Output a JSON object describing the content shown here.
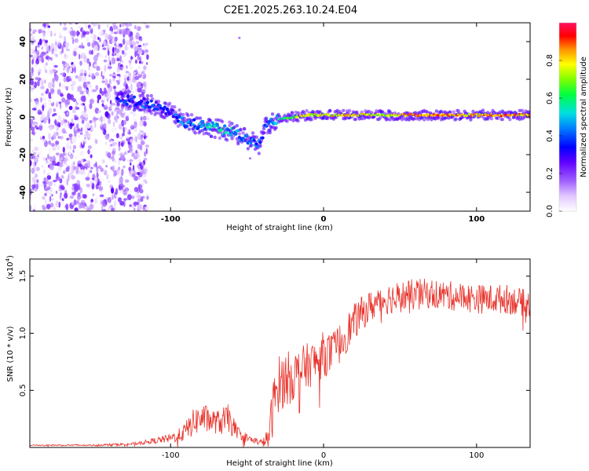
{
  "figure_title": "C2E1.2025.263.10.24.E04",
  "chart_data": [
    {
      "type": "heatmap",
      "panel": "spectrogram",
      "xlabel": "Height of straight line (km)",
      "ylabel": "Frequency (Hz)",
      "xlim": [
        -192,
        135
      ],
      "ylim": [
        -50,
        50
      ],
      "x_ticks": [
        -100,
        0,
        100
      ],
      "x_tick_labels": [
        "-100",
        "0",
        "100"
      ],
      "y_ticks": [
        -40,
        -20,
        0,
        20,
        40
      ],
      "y_tick_labels": [
        "-40",
        "-20",
        "0",
        "20",
        "40"
      ],
      "colorbar": {
        "label": "Normalized spectral amplitude",
        "range": [
          0.0,
          1.0
        ],
        "ticks": [
          0.0,
          0.2,
          0.4,
          0.6,
          0.8
        ],
        "tick_labels": [
          "0.0",
          "0.2",
          "0.4",
          "0.6",
          "0.8"
        ]
      },
      "ridge": {
        "x": [
          -135,
          -120,
          -110,
          -100,
          -90,
          -80,
          -70,
          -60,
          -50,
          -42,
          -38,
          -30,
          -20,
          -10,
          0,
          20,
          40,
          60,
          80,
          100,
          120,
          135
        ],
        "freq": [
          10,
          8,
          6,
          2,
          -3,
          -4,
          -6,
          -8,
          -12,
          -15,
          -5,
          -1,
          0,
          1,
          1,
          1,
          1,
          1,
          1,
          1,
          1,
          1
        ],
        "amplitude": [
          0.3,
          0.35,
          0.35,
          0.35,
          0.4,
          0.45,
          0.5,
          0.5,
          0.45,
          0.4,
          0.3,
          0.5,
          0.7,
          0.75,
          0.75,
          0.8,
          0.7,
          0.85,
          0.85,
          0.8,
          0.85,
          0.8
        ]
      },
      "noise_region": {
        "x_from": -192,
        "x_to": -115,
        "amplitude": 0.15
      }
    },
    {
      "type": "line",
      "panel": "snr",
      "xlabel": "Height of straight line (km)",
      "ylabel": "SNR (10 * v/v)",
      "y_scale_label": "(x10",
      "y_scale_exponent": "4",
      "y_scale_close": ")",
      "xlim": [
        -192,
        135
      ],
      "ylim": [
        0.0,
        1.65
      ],
      "x_ticks": [
        -100,
        0,
        100
      ],
      "x_tick_labels": [
        "-100",
        "0",
        "100"
      ],
      "y_ticks": [
        0.5,
        1.0,
        1.5
      ],
      "y_tick_labels": [
        "0.5",
        "1.0",
        "1.5"
      ],
      "series": [
        {
          "name": "SNR",
          "color": "#e8332b",
          "x": [
            -192,
            -150,
            -125,
            -115,
            -100,
            -92,
            -85,
            -80,
            -75,
            -70,
            -65,
            -62,
            -58,
            -55,
            -50,
            -45,
            -40,
            -36,
            -33,
            -30,
            -25,
            -20,
            -15,
            -10,
            -5,
            0,
            5,
            10,
            15,
            20,
            25,
            30,
            40,
            50,
            60,
            70,
            80,
            90,
            100,
            110,
            120,
            130,
            135
          ],
          "mean": [
            0.02,
            0.02,
            0.03,
            0.05,
            0.08,
            0.12,
            0.22,
            0.26,
            0.24,
            0.22,
            0.23,
            0.25,
            0.16,
            0.12,
            0.08,
            0.06,
            0.04,
            0.08,
            0.35,
            0.55,
            0.6,
            0.62,
            0.68,
            0.72,
            0.75,
            0.82,
            0.82,
            0.9,
            1.0,
            1.1,
            1.17,
            1.23,
            1.3,
            1.32,
            1.34,
            1.35,
            1.33,
            1.32,
            1.3,
            1.3,
            1.3,
            1.27,
            1.25
          ],
          "spread": [
            0.005,
            0.008,
            0.012,
            0.02,
            0.04,
            0.07,
            0.12,
            0.13,
            0.12,
            0.1,
            0.13,
            0.13,
            0.08,
            0.05,
            0.04,
            0.03,
            0.03,
            0.1,
            0.25,
            0.25,
            0.25,
            0.22,
            0.2,
            0.2,
            0.2,
            0.2,
            0.18,
            0.18,
            0.17,
            0.16,
            0.15,
            0.14,
            0.14,
            0.14,
            0.14,
            0.13,
            0.13,
            0.13,
            0.13,
            0.13,
            0.13,
            0.12,
            0.12
          ]
        }
      ]
    }
  ]
}
